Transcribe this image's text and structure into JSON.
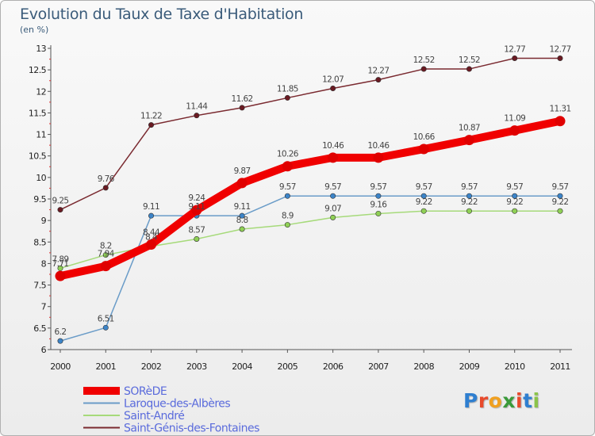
{
  "header": {
    "title": "Evolution du Taux de Taxe d'Habitation",
    "subtitle": "(en %)"
  },
  "logo": {
    "text": "Proxiti",
    "letters": [
      "P",
      "r",
      "o",
      "x",
      "i",
      "t",
      "i"
    ],
    "colors": [
      "#2f7fd0",
      "#e84a2c",
      "#f0a020",
      "#3a9a3a",
      "#e84a2c",
      "#2f7fd0",
      "#8bc34a"
    ]
  },
  "chart_data": {
    "type": "line",
    "x": [
      "2000",
      "2001",
      "2002",
      "2003",
      "2004",
      "2005",
      "2006",
      "2007",
      "2008",
      "2009",
      "2010",
      "2011"
    ],
    "ylim": [
      6,
      13
    ],
    "yticks": [
      "6",
      "6.5",
      "7",
      "7.5",
      "8",
      "8.5",
      "9",
      "9.5",
      "10",
      "10.5",
      "11",
      "11.5",
      "12",
      "12.5",
      "13"
    ],
    "grid": false,
    "legend_position": "bottom-left",
    "series": [
      {
        "name": "SORèDE",
        "color": "#f00000",
        "marker_color": "#e00000",
        "weight": "thick",
        "values": [
          7.71,
          7.94,
          8.44,
          9.24,
          9.87,
          10.26,
          10.46,
          10.46,
          10.66,
          10.87,
          11.09,
          11.31
        ],
        "labels": [
          "7.71",
          "7.94",
          "8.44",
          "9.24",
          "9.87",
          "10.26",
          "10.46",
          "10.46",
          "10.66",
          "10.87",
          "11.09",
          "11.31"
        ]
      },
      {
        "name": "Laroque-des-Albères",
        "color": "#6a9cc8",
        "marker_color": "#3c84c8",
        "weight": "thin",
        "values": [
          6.2,
          6.51,
          9.11,
          9.11,
          9.11,
          9.57,
          9.57,
          9.57,
          9.57,
          9.57,
          9.57,
          9.57
        ],
        "labels": [
          "6.2",
          "6.51",
          "9.11",
          "9.11",
          "9.11",
          "9.57",
          "9.57",
          "9.57",
          "9.57",
          "9.57",
          "9.57",
          "9.57"
        ]
      },
      {
        "name": "Saint-André",
        "color": "#a6da7a",
        "marker_color": "#8fd055",
        "weight": "thin",
        "values": [
          7.89,
          8.2,
          8.4,
          8.57,
          8.8,
          8.9,
          9.07,
          9.16,
          9.22,
          9.22,
          9.22,
          9.22
        ],
        "labels": [
          "7.89",
          "8.2",
          "8.4",
          "8.57",
          "8.8",
          "8.9",
          "9.07",
          "9.16",
          "9.22",
          "9.22",
          "9.22",
          "9.22"
        ]
      },
      {
        "name": "Saint-Génis-des-Fontaines",
        "color": "#7a2a30",
        "marker_color": "#6a1a22",
        "weight": "thin",
        "values": [
          9.25,
          9.76,
          11.22,
          11.44,
          11.62,
          11.85,
          12.07,
          12.27,
          12.52,
          12.52,
          12.77,
          12.77
        ],
        "labels": [
          "9.25",
          "9.76",
          "11.22",
          "11.44",
          "11.62",
          "11.85",
          "12.07",
          "12.27",
          "12.52",
          "12.52",
          "12.77",
          "12.77"
        ]
      }
    ]
  }
}
